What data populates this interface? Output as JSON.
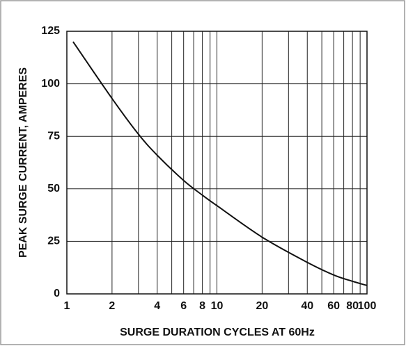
{
  "chart_data": {
    "type": "line",
    "log_x": true,
    "grid": true,
    "xlabel": "SURGE DURATION CYCLES AT 60Hz",
    "ylabel": "PEAK SURGE CURRENT, AMPERES",
    "xlim": [
      1,
      100
    ],
    "ylim": [
      0,
      125
    ],
    "xticks": [
      1,
      2,
      4,
      6,
      8,
      10,
      20,
      40,
      60,
      80,
      100
    ],
    "xminor": [
      3,
      5,
      7,
      9,
      30,
      50,
      70,
      90
    ],
    "yticks": [
      0,
      25,
      50,
      75,
      100,
      125
    ],
    "color": "#111111",
    "x": [
      1.1,
      2,
      3,
      4,
      6,
      8,
      10,
      20,
      40,
      60,
      80,
      100
    ],
    "values": [
      120,
      93,
      76,
      66,
      54,
      47,
      42,
      27,
      15,
      9,
      6,
      4
    ]
  }
}
